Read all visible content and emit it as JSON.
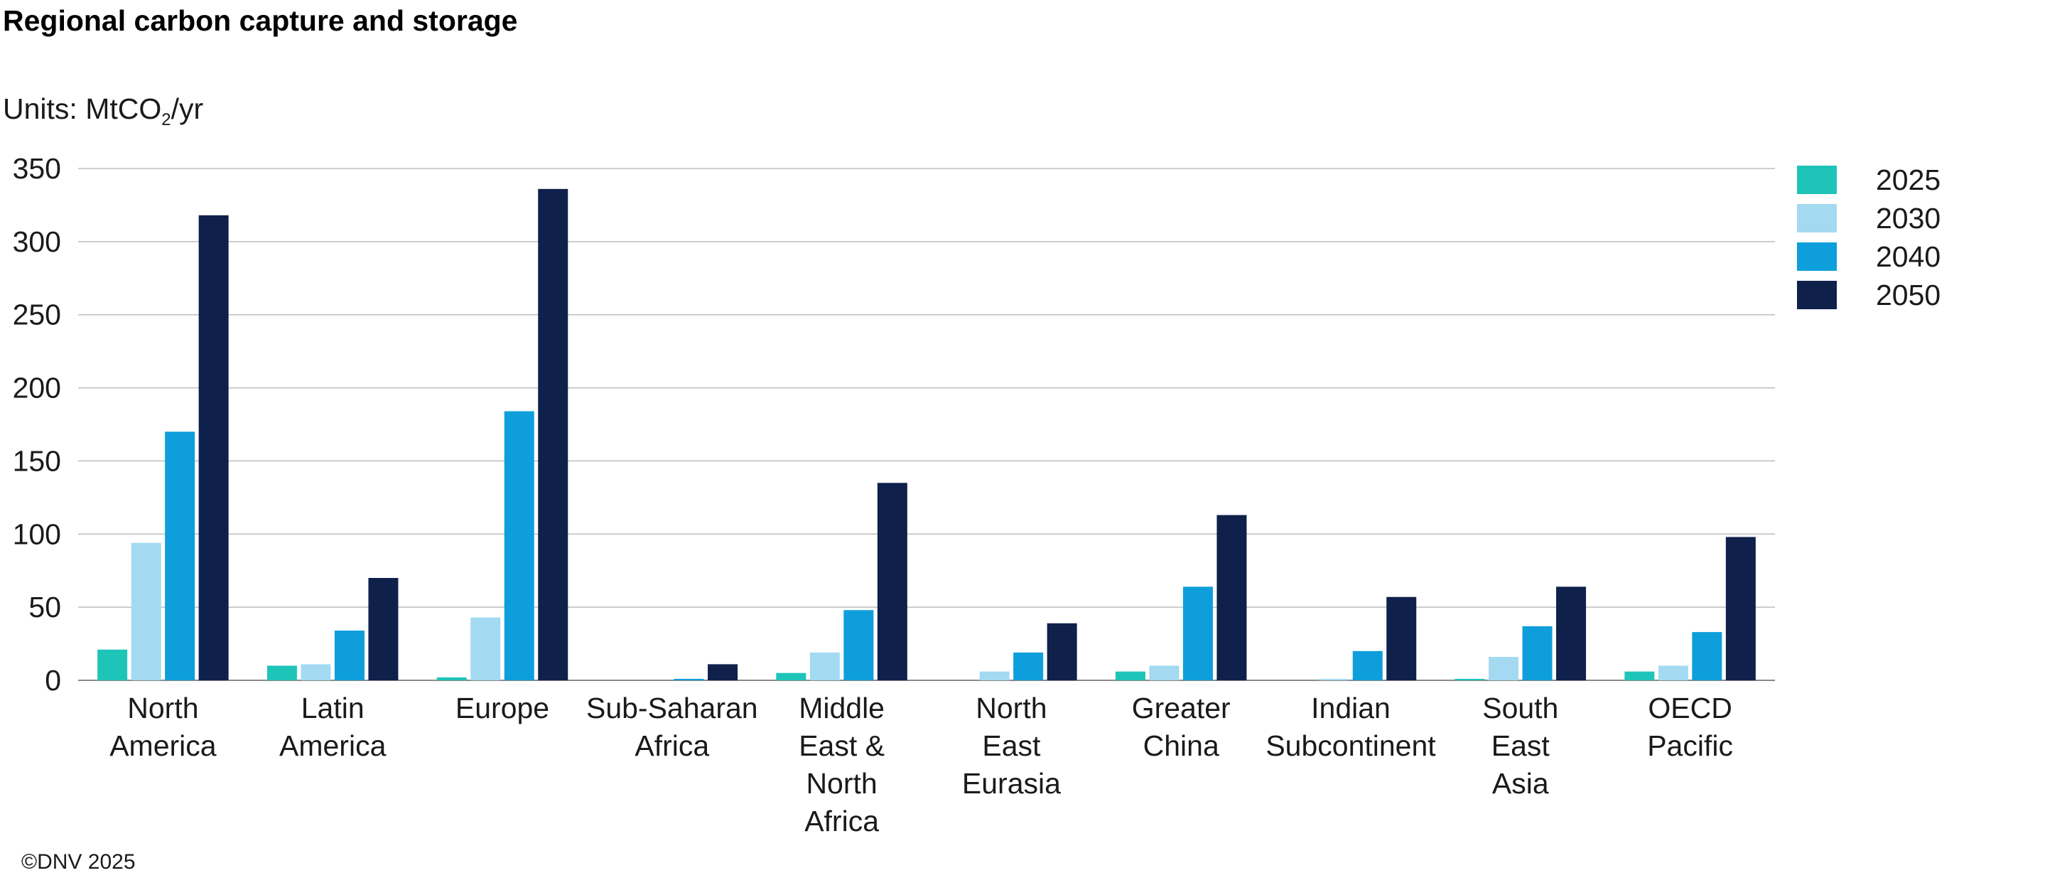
{
  "title": "Regional carbon capture and storage",
  "units": {
    "prefix": "Units: MtCO",
    "sub": "2",
    "suffix": "/yr"
  },
  "copyright": "©DNV 2025",
  "chart_data": {
    "type": "bar",
    "title": "Regional carbon capture and storage",
    "ylabel": "",
    "xlabel": "",
    "ylim": [
      0,
      350
    ],
    "yticks": [
      0,
      50,
      100,
      150,
      200,
      250,
      300,
      350
    ],
    "grid": true,
    "legend_position": "right",
    "categories": [
      [
        "North",
        "America"
      ],
      [
        "Latin",
        "America"
      ],
      [
        "Europe"
      ],
      [
        "Sub-Saharan",
        "Africa"
      ],
      [
        "Middle",
        "East &",
        "North",
        "Africa"
      ],
      [
        "North",
        "East",
        "Eurasia"
      ],
      [
        "Greater",
        "China"
      ],
      [
        "Indian",
        "Subcontinent"
      ],
      [
        "South",
        "East",
        "Asia"
      ],
      [
        "OECD",
        "Pacific"
      ]
    ],
    "series": [
      {
        "name": "2025",
        "color": "#1ec4b8",
        "values": [
          21,
          10,
          2,
          0,
          5,
          0,
          6,
          0,
          1,
          6
        ]
      },
      {
        "name": "2030",
        "color": "#a3daf2",
        "values": [
          94,
          11,
          43,
          0,
          19,
          6,
          10,
          1,
          16,
          10
        ]
      },
      {
        "name": "2040",
        "color": "#0e9edb",
        "values": [
          170,
          34,
          184,
          1,
          48,
          19,
          64,
          20,
          37,
          33
        ]
      },
      {
        "name": "2050",
        "color": "#0f204b",
        "values": [
          318,
          70,
          336,
          11,
          135,
          39,
          113,
          57,
          64,
          98
        ]
      }
    ]
  }
}
